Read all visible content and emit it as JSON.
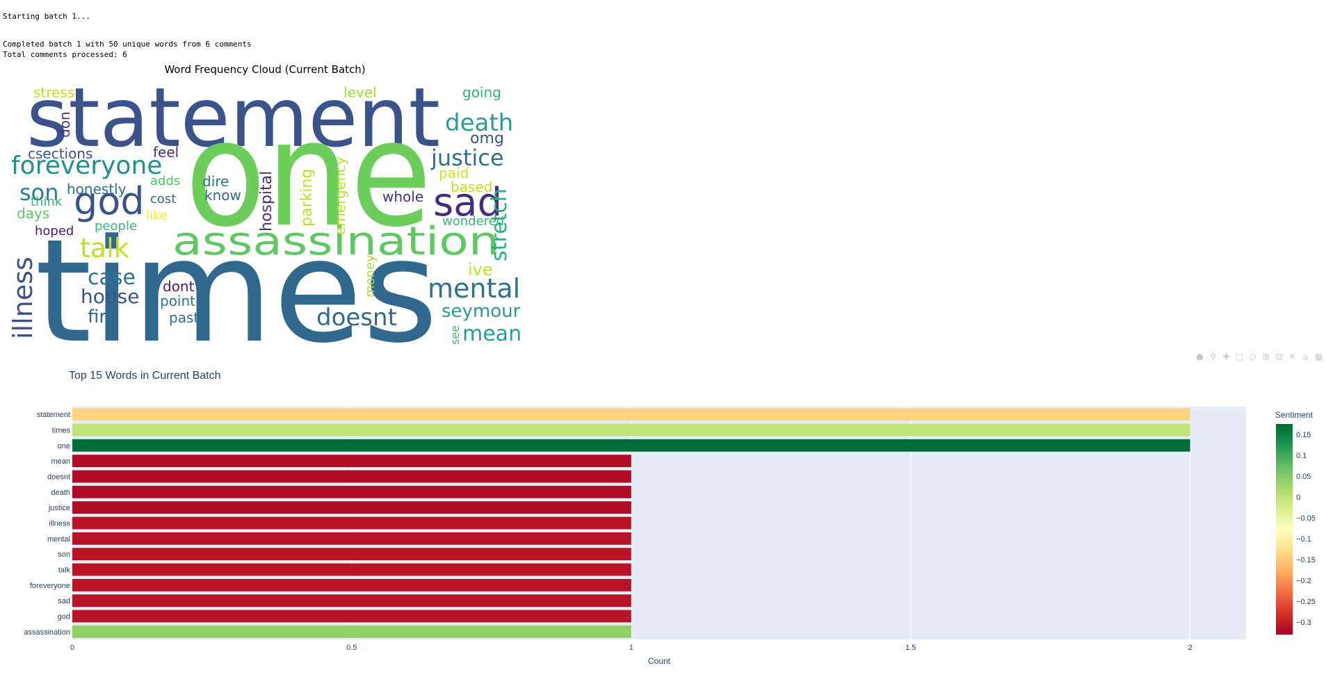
{
  "log": {
    "line1": "Starting batch 1...",
    "line2": "Completed batch 1 with 50 unique words from 6 comments",
    "line3": "Total comments processed: 6"
  },
  "wordcloud": {
    "title": "Word Frequency Cloud (Current Batch)",
    "words": [
      {
        "text": "statement",
        "color": "#3b528b"
      },
      {
        "text": "one",
        "color": "#6ccd5a"
      },
      {
        "text": "times",
        "color": "#31688e"
      },
      {
        "text": "assassination",
        "color": "#5ec962"
      },
      {
        "text": "god",
        "color": "#3b528b"
      },
      {
        "text": "sad",
        "color": "#472d7b"
      },
      {
        "text": "foreveryone",
        "color": "#21908d"
      },
      {
        "text": "death",
        "color": "#2a9d8f"
      },
      {
        "text": "justice",
        "color": "#2c728e"
      },
      {
        "text": "stretch",
        "color": "#29af7f"
      },
      {
        "text": "talk",
        "color": "#c2df23"
      },
      {
        "text": "son",
        "color": "#26828e"
      },
      {
        "text": "mental",
        "color": "#2c728e"
      },
      {
        "text": "illness",
        "color": "#3b528b"
      },
      {
        "text": "doesnt",
        "color": "#31688e"
      },
      {
        "text": "case",
        "color": "#2c728e"
      },
      {
        "text": "house",
        "color": "#3b528b"
      },
      {
        "text": "fire",
        "color": "#31688e"
      },
      {
        "text": "seymour",
        "color": "#2a9d8f"
      },
      {
        "text": "mean",
        "color": "#2a9d8f"
      },
      {
        "text": "stress",
        "color": "#c2df23"
      },
      {
        "text": "level",
        "color": "#a5db36"
      },
      {
        "text": "going",
        "color": "#2fb47c"
      },
      {
        "text": "don",
        "color": "#443983"
      },
      {
        "text": "omg",
        "color": "#3b528b"
      },
      {
        "text": "csections",
        "color": "#3b528b"
      },
      {
        "text": "feel",
        "color": "#472d7b"
      },
      {
        "text": "hospital",
        "color": "#472d7b"
      },
      {
        "text": "parking",
        "color": "#c2df23"
      },
      {
        "text": "emergency",
        "color": "#bddf26"
      },
      {
        "text": "paid",
        "color": "#d2e21b"
      },
      {
        "text": "based",
        "color": "#bddf26"
      },
      {
        "text": "honestly",
        "color": "#2c728e"
      },
      {
        "text": "adds",
        "color": "#52c569"
      },
      {
        "text": "dire",
        "color": "#2c728e"
      },
      {
        "text": "know",
        "color": "#31688e"
      },
      {
        "text": "think",
        "color": "#2fb47c"
      },
      {
        "text": "cost",
        "color": "#31688e"
      },
      {
        "text": "whole",
        "color": "#472d7b"
      },
      {
        "text": "days",
        "color": "#5ec962"
      },
      {
        "text": "like",
        "color": "#fde725"
      },
      {
        "text": "people",
        "color": "#3aba76"
      },
      {
        "text": "wondered",
        "color": "#3aba76"
      },
      {
        "text": "hoped",
        "color": "#481b6d"
      },
      {
        "text": "ive",
        "color": "#c2df23"
      },
      {
        "text": "money",
        "color": "#addc30"
      },
      {
        "text": "dont",
        "color": "#481b6d"
      },
      {
        "text": "point",
        "color": "#2c728e"
      },
      {
        "text": "past",
        "color": "#2c728e"
      },
      {
        "text": "see",
        "color": "#3aba76"
      }
    ]
  },
  "chart_data": {
    "type": "bar",
    "orientation": "horizontal",
    "title": "Top 15 Words in Current Batch",
    "xlabel": "Count",
    "xlim": [
      0,
      2.1
    ],
    "xticks": [
      0,
      0.5,
      1,
      1.5,
      2
    ],
    "xtick_labels": [
      "0",
      "0.5",
      "1",
      "1.5",
      "2"
    ],
    "categories": [
      "statement",
      "times",
      "one",
      "mean",
      "doesnt",
      "death",
      "justice",
      "illness",
      "mental",
      "son",
      "talk",
      "foreveryone",
      "sad",
      "god",
      "assassination"
    ],
    "values": [
      2,
      2,
      2,
      1,
      1,
      1,
      1,
      1,
      1,
      1,
      1,
      1,
      1,
      1,
      1
    ],
    "sentiment": [
      -0.14,
      0.0,
      0.17,
      -0.32,
      -0.32,
      -0.32,
      -0.32,
      -0.31,
      -0.31,
      -0.31,
      -0.31,
      -0.31,
      -0.31,
      -0.31,
      0.04
    ],
    "colorbar": {
      "title": "Sentiment",
      "range": [
        -0.33,
        0.175
      ],
      "ticks": [
        0.15,
        0.1,
        0.05,
        0,
        -0.05,
        -0.1,
        -0.15,
        -0.2,
        -0.25,
        -0.3
      ],
      "tick_labels": [
        "0.15",
        "0.1",
        "0.05",
        "0",
        "−0.05",
        "−0.1",
        "−0.15",
        "−0.2",
        "−0.25",
        "−0.3"
      ],
      "colorscale": [
        "#a50026",
        "#d73027",
        "#f46d43",
        "#fdae61",
        "#fee08b",
        "#ffffbf",
        "#d9ef8b",
        "#a6d96a",
        "#66bd63",
        "#1a9850",
        "#006837"
      ]
    },
    "grid": true,
    "plot_bgcolor": "#e5ecf6"
  },
  "modebar": {
    "icons": [
      "camera-icon",
      "zoom-icon",
      "pan-icon",
      "box-select-icon",
      "lasso-select-icon",
      "zoom-in-icon",
      "zoom-out-icon",
      "autoscale-icon",
      "reset-axes-icon",
      "plotly-logo-icon"
    ]
  }
}
